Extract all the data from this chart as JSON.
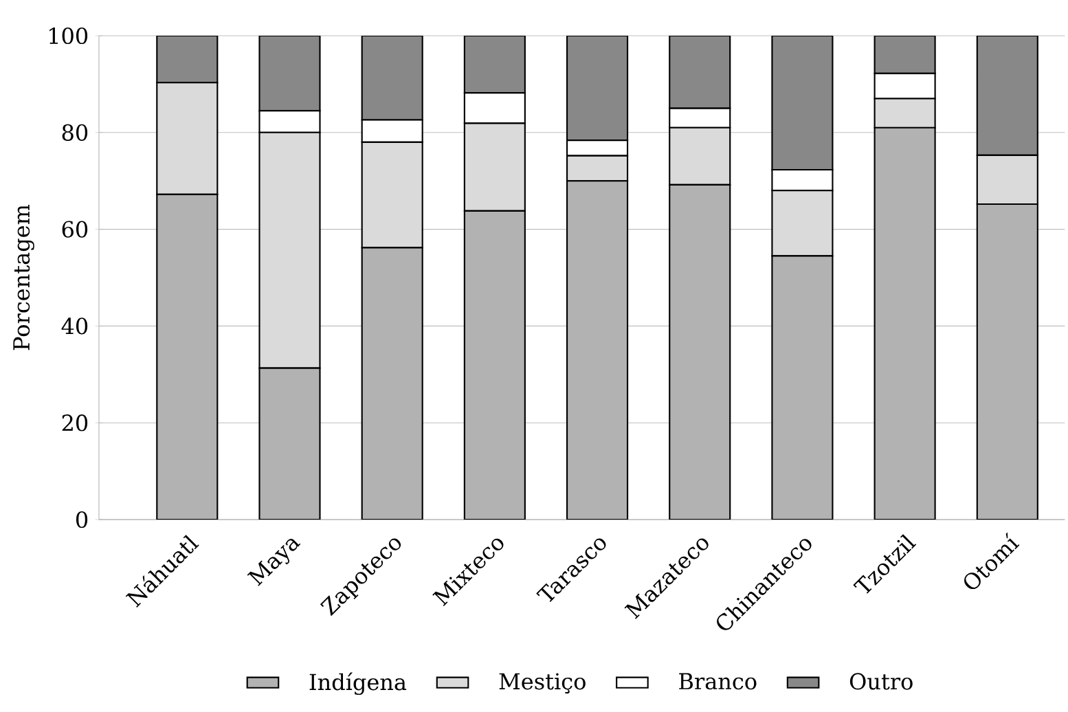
{
  "chart_data": {
    "type": "bar",
    "stacked": true,
    "ylabel": "Porcentagem",
    "categories": [
      "Náhuatl",
      "Maya",
      "Zapoteco",
      "Mixteco",
      "Tarasco",
      "Mazateco",
      "Chinanteco",
      "Tzotzil",
      "Otomí"
    ],
    "series": [
      {
        "name": "Indígena",
        "color": "#b2b2b2",
        "values": [
          67.2,
          31.3,
          56.2,
          63.8,
          70,
          69.2,
          54.5,
          81,
          65.2
        ]
      },
      {
        "name": "Mestiço",
        "color": "#dadada",
        "values": [
          23.1,
          48.7,
          21.8,
          18.1,
          5.2,
          11.8,
          13.5,
          6,
          10.1
        ]
      },
      {
        "name": "Branco",
        "color": "#ffffff",
        "values": [
          0,
          4.5,
          4.6,
          6.3,
          3.2,
          4,
          4.3,
          5.2,
          0
        ]
      },
      {
        "name": "Outro",
        "color": "#888888",
        "values": [
          9.7,
          15.5,
          17.4,
          11.8,
          21.6,
          15,
          27.7,
          7.8,
          24.7
        ]
      }
    ],
    "ylim": [
      0,
      100
    ],
    "yticks": [
      0,
      20,
      40,
      60,
      80,
      100
    ],
    "grid": "y",
    "legend": "bottom"
  }
}
